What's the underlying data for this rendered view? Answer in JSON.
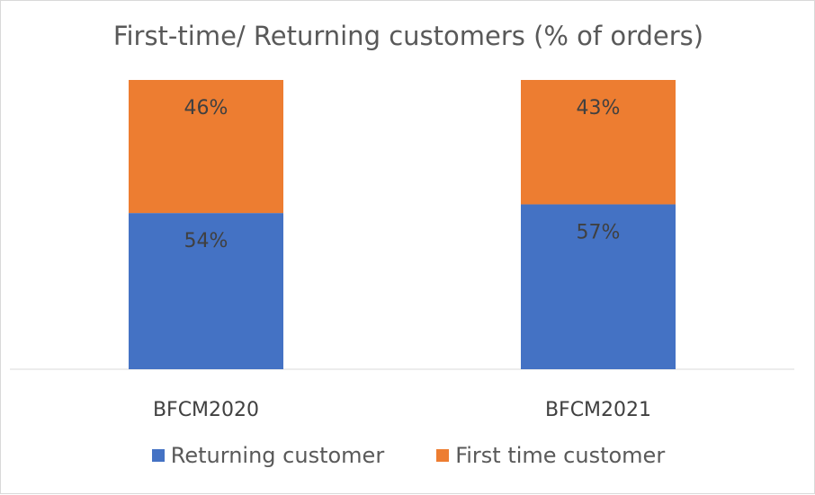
{
  "chart_data": {
    "type": "bar",
    "stacked": true,
    "percent_stacked": true,
    "title": "First-time/ Returning customers (% of orders)",
    "categories": [
      "BFCM2020",
      "BFCM2021"
    ],
    "series": [
      {
        "name": "Returning customer",
        "values": [
          54,
          57
        ],
        "labels": [
          "54%",
          "57%"
        ],
        "color": "#4472C4"
      },
      {
        "name": "First time customer",
        "values": [
          46,
          43
        ],
        "labels": [
          "46%",
          "43%"
        ],
        "color": "#ED7D31"
      }
    ],
    "ylim": [
      0,
      100
    ],
    "grid": false,
    "legend": "bottom"
  }
}
